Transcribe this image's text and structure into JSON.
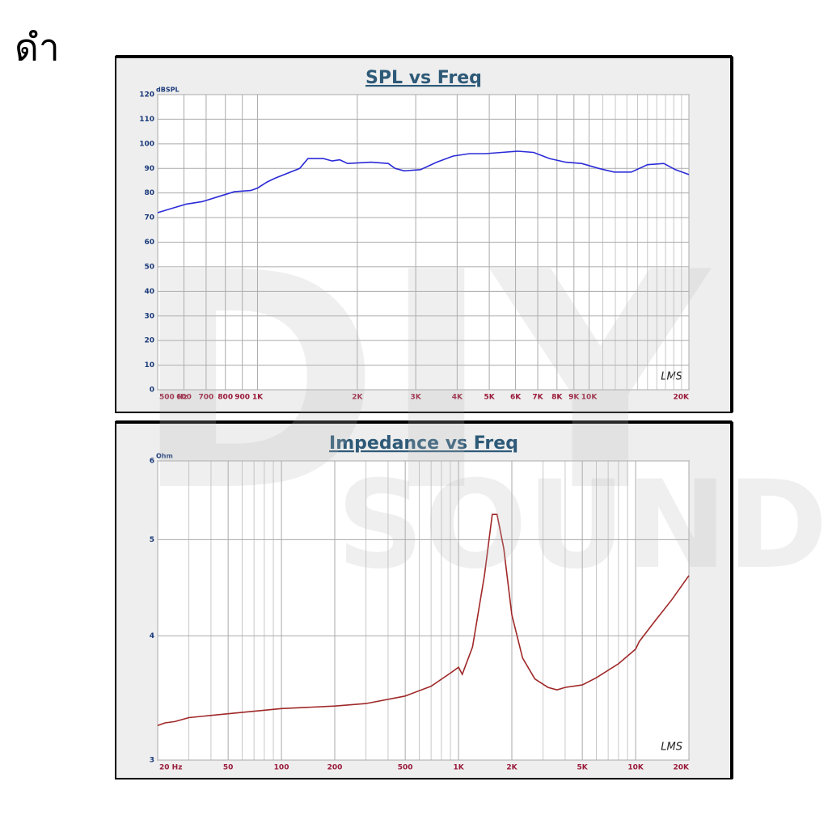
{
  "page_label": "ดำ",
  "watermark": [
    "DIY",
    "SOUND"
  ],
  "chart_data": [
    {
      "type": "line",
      "title": "SPL vs Freq",
      "y_unit": "dBSPL",
      "logo": "LMS",
      "x_log": true,
      "y_log": false,
      "grid": true,
      "color": "#2b2bd8",
      "xlim": [
        500,
        20000
      ],
      "ylim": [
        0,
        120
      ],
      "xticks": [
        {
          "value": 500,
          "label": "500 Hz"
        },
        600,
        700,
        800,
        900,
        {
          "value": 1000,
          "label": "1K"
        },
        {
          "value": 2000,
          "label": "2K"
        },
        {
          "value": 3000,
          "label": "3K"
        },
        {
          "value": 4000,
          "label": "4K"
        },
        {
          "value": 5000,
          "label": "5K"
        },
        {
          "value": 6000,
          "label": "6K"
        },
        {
          "value": 7000,
          "label": "7K"
        },
        {
          "value": 8000,
          "label": "8K"
        },
        {
          "value": 9000,
          "label": "9K"
        },
        {
          "value": 10000,
          "label": "10K"
        },
        {
          "value": 20000,
          "label": "20K"
        }
      ],
      "x_minor_grid": [
        11000,
        12000,
        13000,
        14000,
        15000,
        16000,
        17000,
        18000,
        19000
      ],
      "yticks": [
        0,
        10,
        20,
        30,
        40,
        50,
        60,
        70,
        80,
        90,
        100,
        110,
        120
      ],
      "x": [
        500,
        545,
        610,
        682,
        762,
        852,
        954,
        1000,
        1070,
        1130,
        1340,
        1420,
        1580,
        1680,
        1770,
        1870,
        2200,
        2480,
        2600,
        2770,
        3100,
        3470,
        3890,
        4360,
        4870,
        5450,
        6100,
        6800,
        7600,
        8500,
        9500,
        10700,
        11900,
        13400,
        15000,
        16800,
        18200,
        20000
      ],
      "values": [
        72,
        73.5,
        75.5,
        76.5,
        78.5,
        80.5,
        81,
        82,
        84.5,
        86,
        90,
        94,
        94,
        93,
        93.5,
        92,
        92.5,
        92,
        90,
        89,
        89.5,
        92.5,
        95,
        96,
        96,
        96.5,
        97,
        96.5,
        94,
        92.5,
        92,
        90,
        88.5,
        88.5,
        91.5,
        92,
        89.5,
        87.5
      ]
    },
    {
      "type": "line",
      "title": "Impedance vs Freq",
      "y_unit": "Ohm",
      "logo": "LMS",
      "x_log": true,
      "y_log": true,
      "grid": true,
      "color": "#a02828",
      "xlim": [
        20,
        20000
      ],
      "ylim": [
        3,
        6
      ],
      "xticks": [
        {
          "value": 20,
          "label": "20 Hz"
        },
        50,
        100,
        200,
        500,
        {
          "value": 1000,
          "label": "1K"
        },
        {
          "value": 2000,
          "label": "2K"
        },
        {
          "value": 5000,
          "label": "5K"
        },
        {
          "value": 10000,
          "label": "10K"
        },
        {
          "value": 20000,
          "label": "20K"
        }
      ],
      "x_minor_grid": [
        30,
        40,
        60,
        70,
        80,
        90,
        300,
        400,
        600,
        700,
        800,
        900,
        3000,
        4000,
        6000,
        7000,
        8000,
        9000
      ],
      "yticks": [
        3,
        4,
        5,
        6
      ],
      "x": [
        20,
        22,
        25,
        30,
        50,
        100,
        200,
        300,
        500,
        700,
        900,
        1000,
        1050,
        1200,
        1400,
        1550,
        1650,
        1800,
        2000,
        2300,
        2700,
        3200,
        3600,
        4000,
        5000,
        6000,
        8000,
        10000,
        10500,
        13000,
        16000,
        20000
      ],
      "values": [
        3.25,
        3.27,
        3.28,
        3.31,
        3.34,
        3.38,
        3.4,
        3.42,
        3.48,
        3.56,
        3.67,
        3.72,
        3.66,
        3.9,
        4.6,
        5.3,
        5.3,
        4.9,
        4.2,
        3.8,
        3.62,
        3.55,
        3.53,
        3.55,
        3.57,
        3.63,
        3.75,
        3.88,
        3.95,
        4.15,
        4.35,
        4.6
      ]
    }
  ]
}
